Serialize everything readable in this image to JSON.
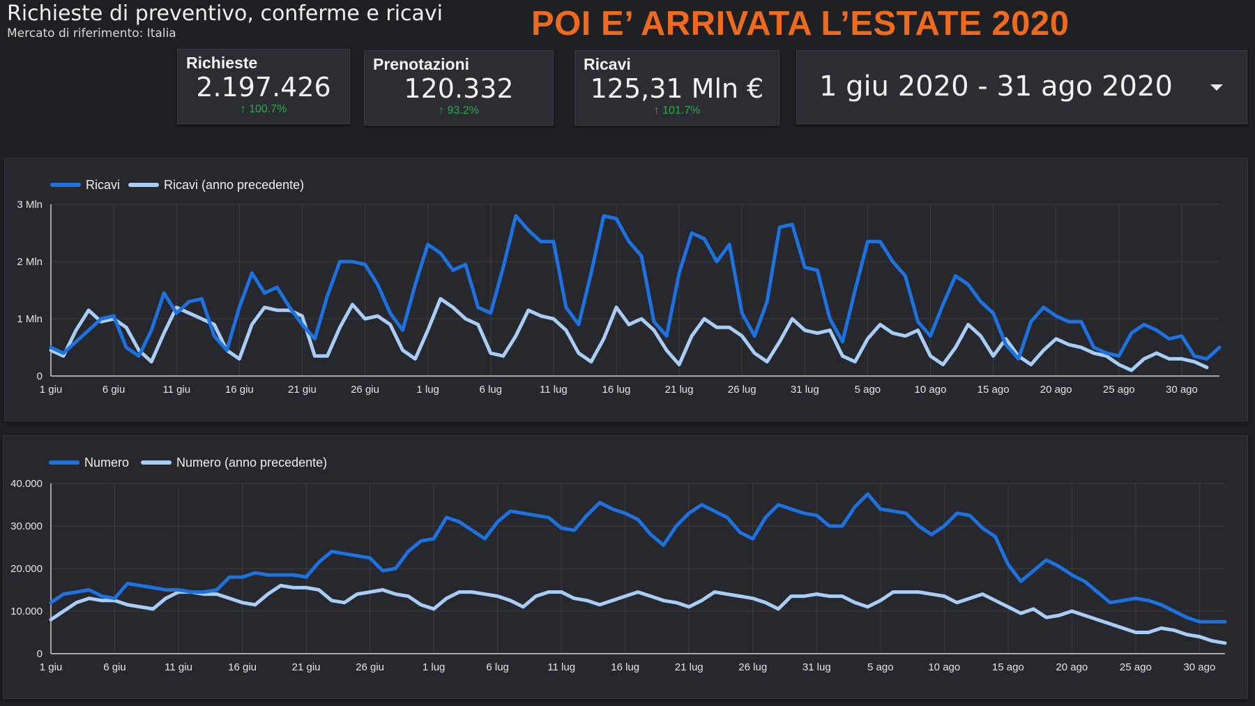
{
  "header": {
    "title": "Richieste di preventivo, conferme e ricavi",
    "subtitle": "Mercato di riferimento: Italia",
    "headline": "POI E’ ARRIVATA L’ESTATE 2020"
  },
  "kpis": {
    "richieste": {
      "label": "Richieste",
      "value": "2.197.426",
      "delta": "↑ 100.7%"
    },
    "prenotazioni": {
      "label": "Prenotazioni",
      "value": "120.332",
      "delta": "↑ 93.2%"
    },
    "ricavi": {
      "label": "Ricavi",
      "value": "125,31 Mln €",
      "delta": "↑ 101.7%"
    }
  },
  "date_range": {
    "label": "1 giu 2020 - 31 ago 2020",
    "icon": "chevron-down-icon"
  },
  "colors": {
    "current": "#1e72e0",
    "previous": "#a9cdf5",
    "grid": "#3a3d44",
    "axis_text": "#e6e6e6"
  },
  "chart_data": [
    {
      "type": "line",
      "x_tick_labels": [
        "1 giu",
        "6 giu",
        "11 giu",
        "16 giu",
        "21 giu",
        "26 giu",
        "1 lug",
        "6 lug",
        "11 lug",
        "16 lug",
        "21 lug",
        "26 lug",
        "31 lug",
        "5 ago",
        "10 ago",
        "15 ago",
        "20 ago",
        "25 ago",
        "30 ago"
      ],
      "x_range": [
        "2020-06-01",
        "2020-08-31"
      ],
      "y_tick_labels": [
        "0",
        "1 Mln",
        "2 Mln",
        "3 Mln"
      ],
      "ylim": [
        0,
        3000000
      ],
      "y_ticks": [
        0,
        1000000,
        2000000,
        3000000
      ],
      "grid": true,
      "legend": "top-left",
      "series": [
        {
          "name": "Ricavi",
          "values": [
            500000,
            400000,
            600000,
            800000,
            1000000,
            1050000,
            500000,
            350000,
            800000,
            1450000,
            1100000,
            1300000,
            1350000,
            700000,
            450000,
            1200000,
            1800000,
            1450000,
            1550000,
            1200000,
            900000,
            650000,
            1400000,
            2000000,
            2000000,
            1950000,
            1600000,
            1100000,
            800000,
            1600000,
            2300000,
            2150000,
            1850000,
            1950000,
            1200000,
            1100000,
            1900000,
            2800000,
            2550000,
            2350000,
            2350000,
            1200000,
            900000,
            1800000,
            2800000,
            2750000,
            2350000,
            2100000,
            950000,
            700000,
            1800000,
            2500000,
            2400000,
            2000000,
            2300000,
            1100000,
            700000,
            1300000,
            2600000,
            2650000,
            1900000,
            1850000,
            1000000,
            600000,
            1500000,
            2350000,
            2350000,
            2000000,
            1750000,
            950000,
            700000,
            1250000,
            1750000,
            1600000,
            1300000,
            1100000,
            550000,
            300000,
            950000,
            1200000,
            1050000,
            950000,
            950000,
            500000,
            400000,
            350000,
            750000,
            900000,
            800000,
            650000,
            700000,
            350000,
            300000,
            500000
          ]
        },
        {
          "name": "Ricavi (anno precedente)",
          "values": [
            450000,
            350000,
            800000,
            1150000,
            950000,
            1000000,
            850000,
            450000,
            250000,
            750000,
            1200000,
            1100000,
            1000000,
            900000,
            450000,
            300000,
            900000,
            1200000,
            1150000,
            1150000,
            1050000,
            350000,
            350000,
            850000,
            1250000,
            1000000,
            1050000,
            900000,
            450000,
            300000,
            800000,
            1350000,
            1200000,
            1000000,
            900000,
            400000,
            350000,
            700000,
            1150000,
            1050000,
            1000000,
            800000,
            400000,
            250000,
            650000,
            1200000,
            900000,
            1000000,
            800000,
            450000,
            200000,
            700000,
            1000000,
            850000,
            850000,
            700000,
            400000,
            250000,
            600000,
            1000000,
            800000,
            750000,
            800000,
            350000,
            250000,
            650000,
            900000,
            750000,
            700000,
            800000,
            350000,
            200000,
            500000,
            900000,
            700000,
            350000,
            650000,
            350000,
            200000,
            450000,
            650000,
            550000,
            500000,
            400000,
            350000,
            200000,
            100000,
            300000,
            400000,
            300000,
            300000,
            250000,
            150000
          ]
        }
      ]
    },
    {
      "type": "line",
      "x_tick_labels": [
        "1 giu",
        "6 giu",
        "11 giu",
        "16 giu",
        "21 giu",
        "26 giu",
        "1 lug",
        "6 lug",
        "11 lug",
        "16 lug",
        "21 lug",
        "26 lug",
        "31 lug",
        "5 ago",
        "10 ago",
        "15 ago",
        "20 ago",
        "25 ago",
        "30 ago"
      ],
      "x_range": [
        "2020-06-01",
        "2020-08-31"
      ],
      "y_tick_labels": [
        "0",
        "10.000",
        "20.000",
        "30.000",
        "40.000"
      ],
      "ylim": [
        0,
        40000
      ],
      "y_ticks": [
        0,
        10000,
        20000,
        30000,
        40000
      ],
      "grid": true,
      "legend": "top-left",
      "series": [
        {
          "name": "Numero",
          "values": [
            12000,
            14000,
            14500,
            15000,
            13500,
            13000,
            16500,
            16000,
            15500,
            15000,
            15000,
            14500,
            14500,
            15000,
            18000,
            18000,
            19000,
            18500,
            18500,
            18500,
            18000,
            21500,
            24000,
            23500,
            23000,
            22500,
            19500,
            20000,
            24000,
            26500,
            27000,
            32000,
            31000,
            29000,
            27000,
            31000,
            33500,
            33000,
            32500,
            32000,
            29500,
            29000,
            32500,
            35500,
            34000,
            33000,
            31500,
            28000,
            25500,
            30000,
            33000,
            35000,
            33500,
            32000,
            28500,
            27000,
            32000,
            35000,
            34000,
            33000,
            32500,
            30000,
            30000,
            34500,
            37500,
            34000,
            33500,
            33000,
            30000,
            28000,
            30000,
            33000,
            32500,
            29500,
            27500,
            21000,
            17000,
            19500,
            22000,
            20500,
            18500,
            17000,
            14500,
            12000,
            12500,
            13000,
            12500,
            11500,
            10000,
            8500,
            7500,
            7500,
            7500
          ]
        },
        {
          "name": "Numero (anno precedente)",
          "values": [
            8000,
            10000,
            12000,
            13000,
            12500,
            12500,
            11500,
            11000,
            10500,
            13000,
            14500,
            14500,
            14000,
            14000,
            13000,
            12000,
            11500,
            14000,
            16000,
            15500,
            15500,
            15000,
            12500,
            12000,
            14000,
            14500,
            15000,
            14000,
            13500,
            11500,
            10500,
            13000,
            14500,
            14500,
            14000,
            13500,
            12500,
            11000,
            13500,
            14500,
            14500,
            13000,
            12500,
            11500,
            12500,
            13500,
            14500,
            13500,
            12500,
            12000,
            11000,
            12500,
            14500,
            14000,
            13500,
            13000,
            12000,
            10500,
            13500,
            13500,
            14000,
            13500,
            13500,
            12000,
            11000,
            12500,
            14500,
            14500,
            14500,
            14000,
            13500,
            12000,
            13000,
            14000,
            12500,
            11000,
            9500,
            10500,
            8500,
            9000,
            10000,
            9000,
            8000,
            7000,
            6000,
            5000,
            5000,
            6000,
            5500,
            4500,
            4000,
            3000,
            2500
          ]
        }
      ]
    }
  ]
}
